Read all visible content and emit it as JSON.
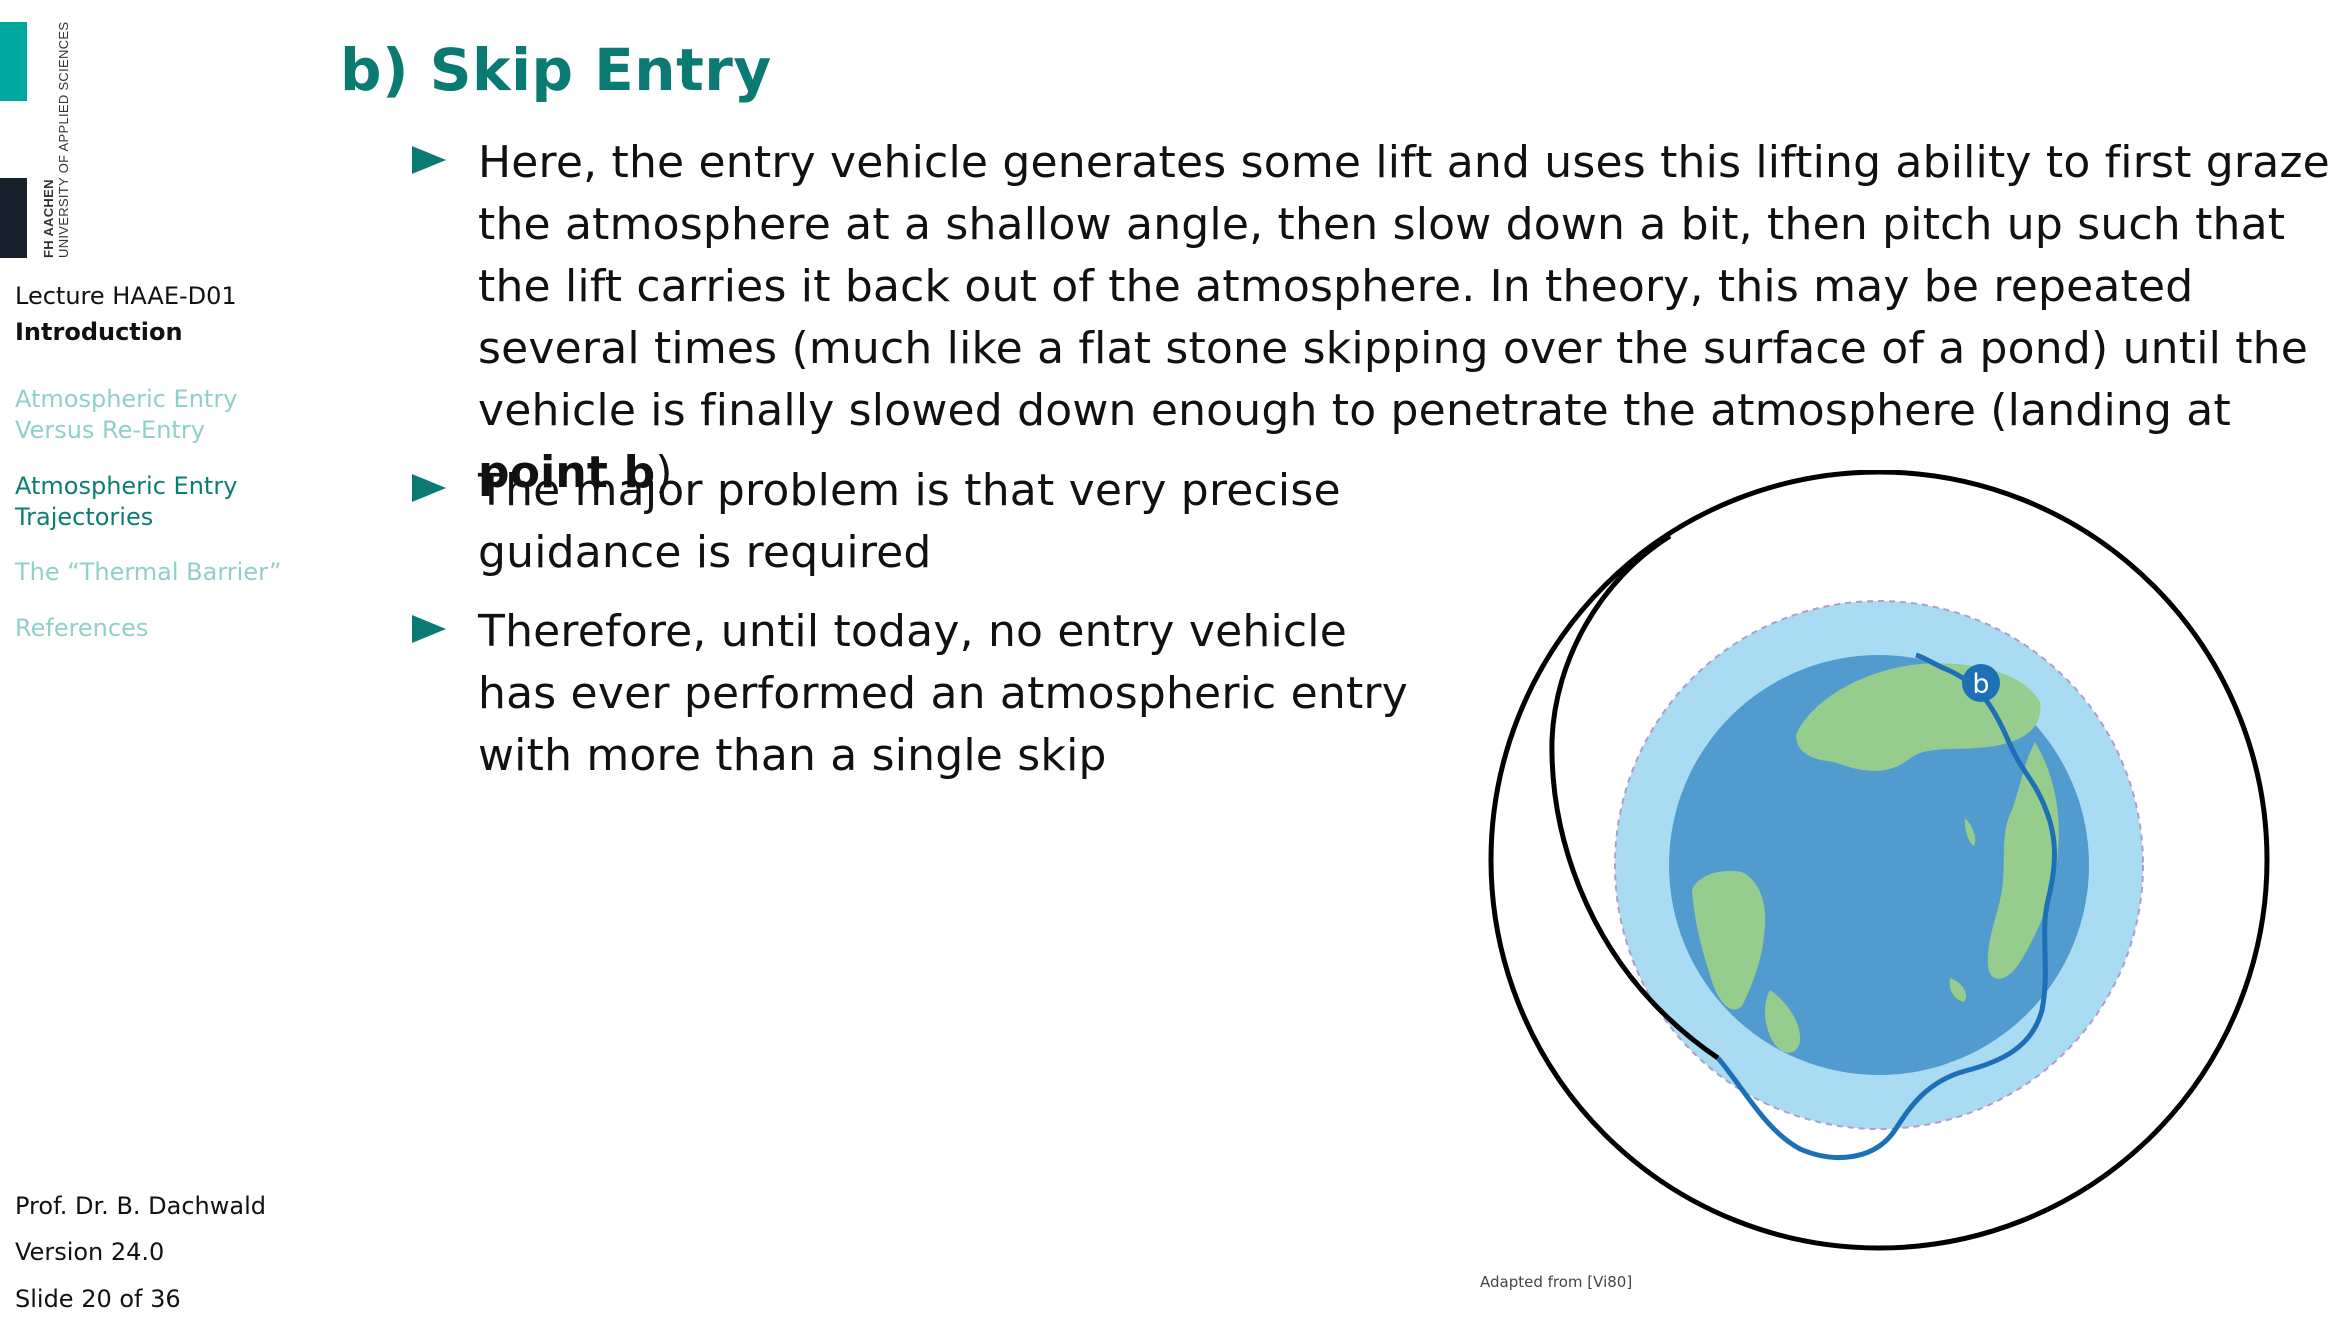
{
  "sidebar": {
    "logo_line1": "FH AACHEN",
    "logo_line2": "UNIVERSITY OF APPLIED SCIENCES",
    "lecture": "Lecture HAAE-D01",
    "section": "Introduction",
    "nav": [
      {
        "label": "Atmospheric Entry Versus Re-Entry"
      },
      {
        "label": "Atmospheric Entry Trajectories"
      },
      {
        "label": "The “Thermal Barrier”"
      },
      {
        "label": "References"
      }
    ],
    "author": "Prof. Dr. B. Dachwald",
    "version": "Version 24.0",
    "slide": "Slide 20 of 36"
  },
  "slide": {
    "title": "b) Skip Entry",
    "bullet1": {
      "text": "Here, the entry vehicle generates some lift and uses this lifting ability to first graze the atmosphere at a shallow angle, then slow down a bit, then pitch up such that the lift carries it back out of the atmosphere. In theory, this may be repeated several times (much like a flat stone skipping over the surface of a pond) until the vehicle is finally slowed down enough to penetrate the atmosphere (landing at ",
      "bold": "point b",
      "end": ")"
    },
    "bullet2": "The major problem is that very precise guidance is required",
    "bullet3": "Therefore, until today, no entry vehicle has ever performed an atmospheric entry with more than a single skip"
  },
  "figure": {
    "point_label": "b",
    "credit": "Adapted from [Vi80]"
  },
  "colors": {
    "accent": "#0a7a72",
    "nav_inactive": "#8fd0cb",
    "atmosphere": "#a9dbf3",
    "ocean": "#529bce",
    "land": "#96cc8e",
    "trajectory": "#1d6fb6"
  }
}
